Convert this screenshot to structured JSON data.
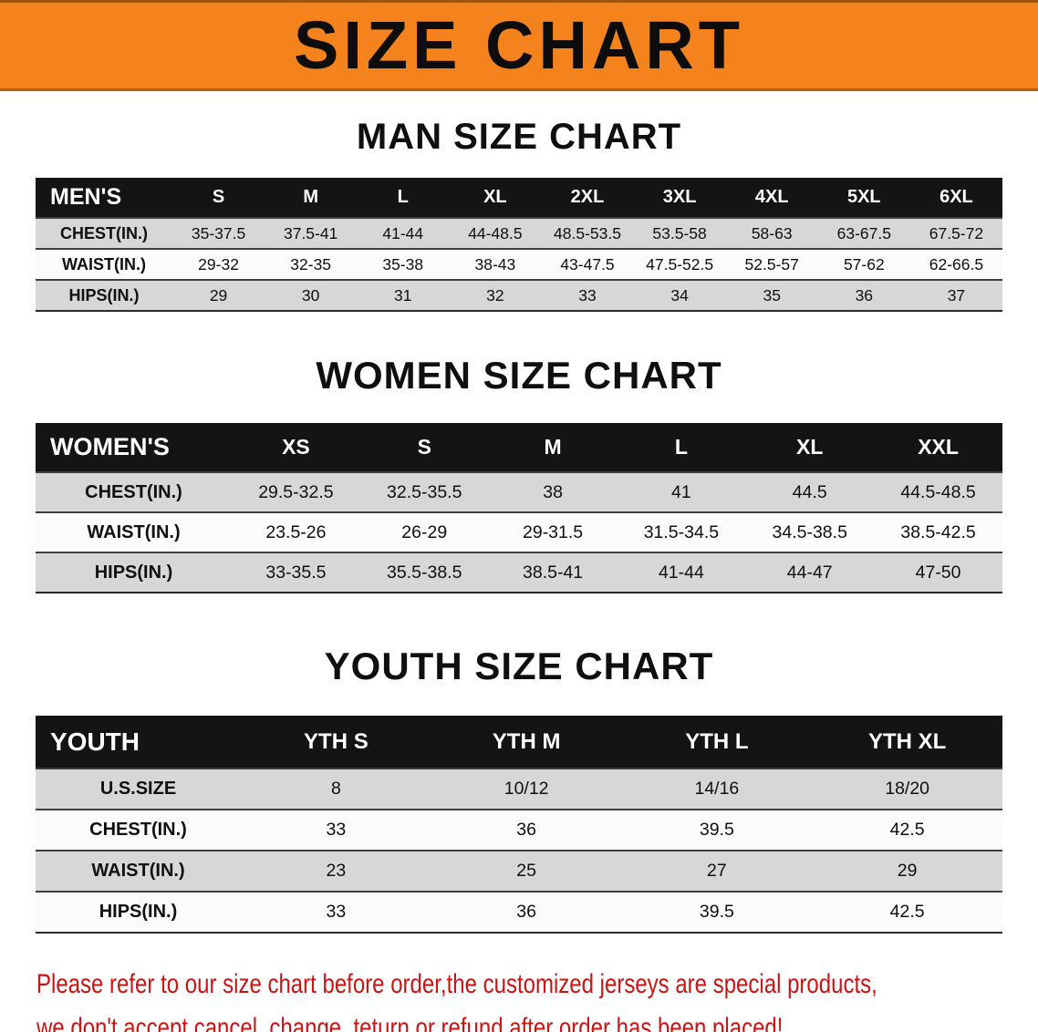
{
  "banner": {
    "title": "SIZE CHART",
    "background_color": "#F5831D"
  },
  "colors": {
    "header_bar": "#141414",
    "shaded_row": "#d7d7d7",
    "notice_red": "#C91414"
  },
  "sections": [
    {
      "id": "men",
      "heading": "MAN SIZE CHART",
      "table": {
        "header": [
          "MEN'S",
          "S",
          "M",
          "L",
          "XL",
          "2XL",
          "3XL",
          "4XL",
          "5XL",
          "6XL"
        ],
        "rows": [
          {
            "label": "CHEST(IN.)",
            "values": [
              "35-37.5",
              "37.5-41",
              "41-44",
              "44-48.5",
              "48.5-53.5",
              "53.5-58",
              "58-63",
              "63-67.5",
              "67.5-72"
            ]
          },
          {
            "label": "WAIST(IN.)",
            "values": [
              "29-32",
              "32-35",
              "35-38",
              "38-43",
              "43-47.5",
              "47.5-52.5",
              "52.5-57",
              "57-62",
              "62-66.5"
            ]
          },
          {
            "label": "HIPS(IN.)",
            "values": [
              "29",
              "30",
              "31",
              "32",
              "33",
              "34",
              "35",
              "36",
              "37"
            ]
          }
        ]
      }
    },
    {
      "id": "women",
      "heading": "WOMEN SIZE CHART",
      "table": {
        "header": [
          "WOMEN'S",
          "XS",
          "S",
          "M",
          "L",
          "XL",
          "XXL"
        ],
        "rows": [
          {
            "label": "CHEST(IN.)",
            "values": [
              "29.5-32.5",
              "32.5-35.5",
              "38",
              "41",
              "44.5",
              "44.5-48.5"
            ]
          },
          {
            "label": "WAIST(IN.)",
            "values": [
              "23.5-26",
              "26-29",
              "29-31.5",
              "31.5-34.5",
              "34.5-38.5",
              "38.5-42.5"
            ]
          },
          {
            "label": "HIPS(IN.)",
            "values": [
              "33-35.5",
              "35.5-38.5",
              "38.5-41",
              "41-44",
              "44-47",
              "47-50"
            ]
          }
        ]
      }
    },
    {
      "id": "youth",
      "heading": "YOUTH SIZE CHART",
      "table": {
        "header": [
          "YOUTH",
          "YTH S",
          "YTH M",
          "YTH L",
          "YTH XL"
        ],
        "rows": [
          {
            "label": "U.S.SIZE",
            "values": [
              "8",
              "10/12",
              "14/16",
              "18/20"
            ]
          },
          {
            "label": "CHEST(IN.)",
            "values": [
              "33",
              "36",
              "39.5",
              "42.5"
            ]
          },
          {
            "label": "WAIST(IN.)",
            "values": [
              "23",
              "25",
              "27",
              "29"
            ]
          },
          {
            "label": "HIPS(IN.)",
            "values": [
              "33",
              "36",
              "39.5",
              "42.5"
            ]
          }
        ]
      }
    }
  ],
  "footer": {
    "color": "#C91414",
    "lines": [
      "Please refer to our size chart before order,the customized jerseys are special products,",
      "we don't accept cancel, change, teturn or refund after order has been placed!"
    ]
  }
}
